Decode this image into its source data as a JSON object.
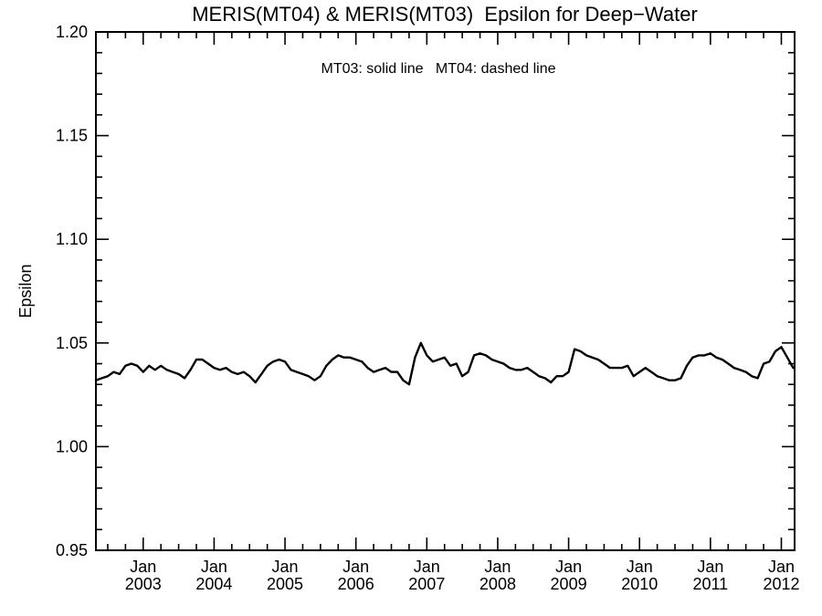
{
  "page": {
    "background_color": "#ffffff",
    "foreground_color": "#000000"
  },
  "chart_data": {
    "type": "line",
    "title": "MERIS(MT04) & MERIS(MT03)  Epsilon for Deep−Water",
    "annotation": "MT03: solid line   MT04: dashed line",
    "xlabel": "",
    "ylabel": "Epsilon",
    "ylim": [
      0.95,
      1.2
    ],
    "xlim_years": [
      2002.333,
      2012.187
    ],
    "y_major_ticks": [
      "0.95",
      "1.00",
      "1.05",
      "1.10",
      "1.15",
      "1.20"
    ],
    "y_minor_step": 0.01,
    "x_major_ticks": [
      {
        "month": "Jan",
        "year": "2003"
      },
      {
        "month": "Jan",
        "year": "2004"
      },
      {
        "month": "Jan",
        "year": "2005"
      },
      {
        "month": "Jan",
        "year": "2006"
      },
      {
        "month": "Jan",
        "year": "2007"
      },
      {
        "month": "Jan",
        "year": "2008"
      },
      {
        "month": "Jan",
        "year": "2009"
      },
      {
        "month": "Jan",
        "year": "2010"
      },
      {
        "month": "Jan",
        "year": "2011"
      },
      {
        "month": "Jan",
        "year": "2012"
      }
    ],
    "x_minor_step_years": 0.25,
    "grid": false,
    "legend_position": "none",
    "frame": "box-with-inward-ticks",
    "line_color": "#000000",
    "series": [
      {
        "name": "MT03",
        "style": "solid",
        "cadence": "monthly",
        "start_month": "2002-05",
        "values": [
          1.032,
          1.033,
          1.034,
          1.036,
          1.035,
          1.039,
          1.04,
          1.039,
          1.036,
          1.039,
          1.037,
          1.039,
          1.037,
          1.036,
          1.035,
          1.033,
          1.037,
          1.042,
          1.042,
          1.04,
          1.038,
          1.037,
          1.038,
          1.036,
          1.035,
          1.036,
          1.034,
          1.031,
          1.035,
          1.039,
          1.041,
          1.042,
          1.041,
          1.037,
          1.036,
          1.035,
          1.034,
          1.032,
          1.034,
          1.039,
          1.042,
          1.044,
          1.043,
          1.043,
          1.042,
          1.041,
          1.038,
          1.036,
          1.037,
          1.038,
          1.036,
          1.036,
          1.032,
          1.03,
          1.043,
          1.05,
          1.044,
          1.041,
          1.042,
          1.043,
          1.039,
          1.04,
          1.034,
          1.036,
          1.044,
          1.045,
          1.044,
          1.042,
          1.041,
          1.04,
          1.038,
          1.037,
          1.037,
          1.038,
          1.036,
          1.034,
          1.033,
          1.031,
          1.034,
          1.034,
          1.036,
          1.047,
          1.046,
          1.044,
          1.043,
          1.042,
          1.04,
          1.038,
          1.038,
          1.038,
          1.039,
          1.034,
          1.036,
          1.038,
          1.036,
          1.034,
          1.033,
          1.032,
          1.032,
          1.033,
          1.039,
          1.043,
          1.044,
          1.044,
          1.045,
          1.043,
          1.042,
          1.04,
          1.038,
          1.037,
          1.036,
          1.034,
          1.033,
          1.04,
          1.041,
          1.046,
          1.048,
          1.043,
          1.038
        ]
      }
    ]
  }
}
